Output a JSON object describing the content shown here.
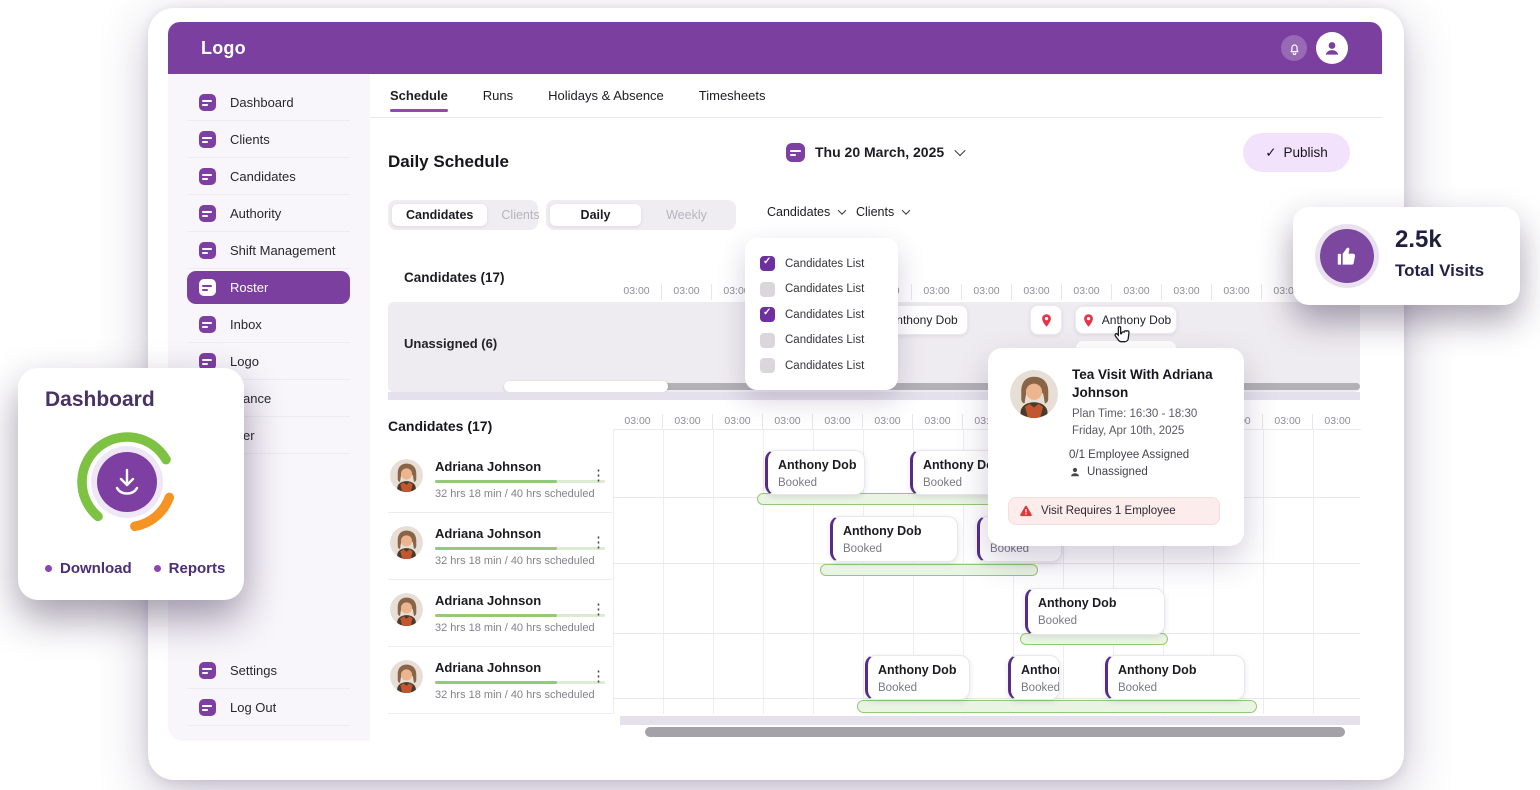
{
  "app": {
    "logo": "Logo"
  },
  "colors": {
    "accent": "#7b3fa0",
    "green": "#7dc242",
    "orange": "#f59422",
    "red": "#e8344a"
  },
  "sidebar": {
    "items": [
      {
        "label": "Dashboard"
      },
      {
        "label": "Clients"
      },
      {
        "label": "Candidates"
      },
      {
        "label": "Authority"
      },
      {
        "label": "Shift Management"
      },
      {
        "label": "Roster",
        "active": true
      },
      {
        "label": "Inbox"
      },
      {
        "label": "Logo"
      },
      {
        "label": "ance",
        "class": "fragment"
      },
      {
        "label": "er",
        "class": "fragment"
      }
    ],
    "footer_items": [
      {
        "label": "Settings"
      },
      {
        "label": "Log Out"
      }
    ]
  },
  "tabs": {
    "items": [
      {
        "label": "Schedule",
        "active": true
      },
      {
        "label": "Runs"
      },
      {
        "label": "Holidays & Absence"
      },
      {
        "label": "Timesheets"
      }
    ]
  },
  "toolbar": {
    "title": "Daily Schedule",
    "date": "Thu 20 March, 2025",
    "publish_check": "✓",
    "publish_label": "Publish"
  },
  "filters": {
    "entity_toggle": [
      {
        "label": "Candidates",
        "active": true
      },
      {
        "label": "Clients"
      }
    ],
    "period_toggle": [
      {
        "label": "Daily",
        "active": true
      },
      {
        "label": "Weekly"
      }
    ],
    "dropdown_triggers": [
      {
        "label": "Candidates"
      },
      {
        "label": "Clients"
      }
    ]
  },
  "candidates_dropdown": {
    "items": [
      {
        "label": "Candidates List",
        "checked": true
      },
      {
        "label": "Candidates List"
      },
      {
        "label": "Candidates List",
        "checked": true
      },
      {
        "label": "Candidates List"
      },
      {
        "label": "Candidates List"
      }
    ]
  },
  "top_timeline": {
    "title": "Candidates (17)",
    "unassigned_label": "Unassigned (6)",
    "times": [
      "03:00",
      "03:00",
      "03:00",
      "03:00",
      "03:00",
      "03:00",
      "03:00",
      "03:00",
      "03:00",
      "03:00",
      "03:00",
      "03:00",
      "03:00",
      "03:00",
      "03:00"
    ],
    "cards": {
      "clipped_name": "Anthony Dob",
      "pin_name": "Anthony Dob"
    }
  },
  "schedule": {
    "times": [
      "03:00",
      "03:00",
      "03:00",
      "03:00",
      "03:00",
      "03:00",
      "03:00",
      "03:00",
      "03:00",
      "03:00",
      "03:00",
      "03:00",
      "03:00",
      "03:00",
      "03:00"
    ],
    "bookings": [
      {
        "name": "Anthony Dob",
        "status": "Booked"
      },
      {
        "name": "Anthony Dob",
        "status": "Booked"
      },
      {
        "name": "Anthony Dob",
        "status": "Booked"
      },
      {
        "name": "Anthony Dob",
        "status": "Booked"
      },
      {
        "name": "Anthony Dob",
        "status": "Booked"
      },
      {
        "name": "Anthony Dob",
        "status": "Booked"
      },
      {
        "name": "Anthony Dob",
        "status": "Booked"
      },
      {
        "name": "Anthony Dob",
        "status": "Booked"
      }
    ]
  },
  "candidate_list": {
    "title": "Candidates (17)",
    "rows": [
      {
        "name": "Adriana Johnson",
        "hours": "32 hrs 18 min / 40 hrs scheduled"
      },
      {
        "name": "Adriana Johnson",
        "hours": "32 hrs 18 min / 40 hrs scheduled"
      },
      {
        "name": "Adriana Johnson",
        "hours": "32 hrs 18 min / 40 hrs scheduled"
      },
      {
        "name": "Adriana Johnson",
        "hours": "32 hrs 18 min / 40 hrs scheduled"
      }
    ]
  },
  "visit_popover": {
    "title": "Tea Visit With Adriana Johnson",
    "plan_time": "Plan Time: 16:30 - 18:30",
    "date": "Friday, Apr 10th, 2025",
    "assigned": "0/1 Employee Assigned",
    "assignee": "Unassigned",
    "warning": "Visit Requires 1 Employee"
  },
  "stats_card": {
    "value": "2.5k",
    "label": "Total Visits"
  },
  "dashboard_card": {
    "title": "Dashboard",
    "legend": [
      {
        "label": "Download"
      },
      {
        "label": "Reports"
      }
    ]
  }
}
